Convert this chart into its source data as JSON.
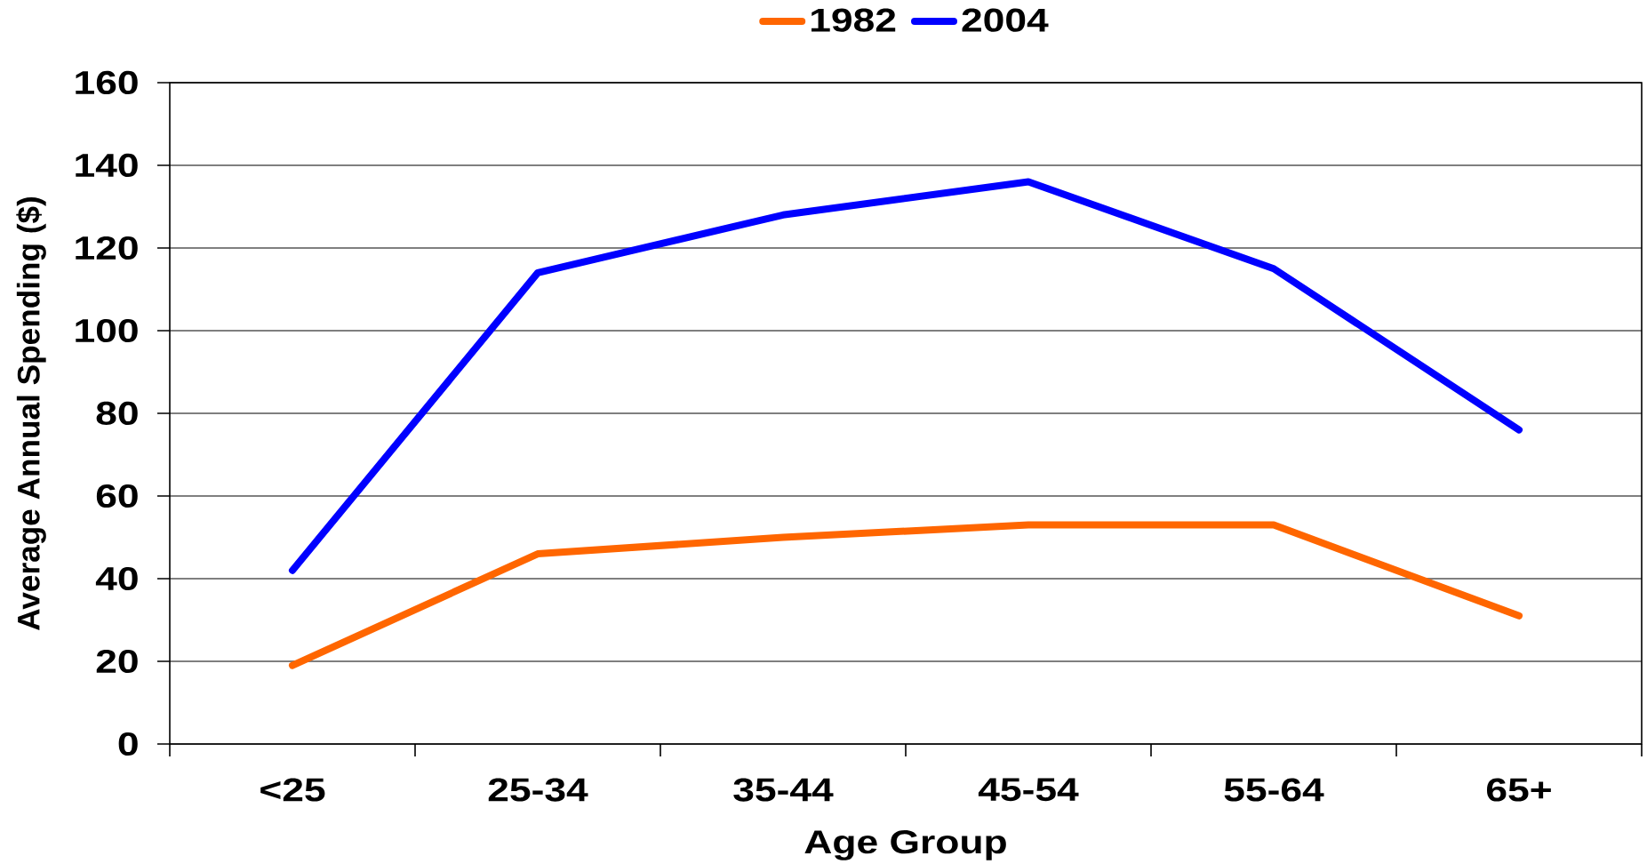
{
  "chart_data": {
    "type": "line",
    "xlabel": "Age Group",
    "ylabel": "Average Annual Spending ($)",
    "categories": [
      "<25",
      "25-34",
      "35-44",
      "45-54",
      "55-64",
      "65+"
    ],
    "series": [
      {
        "name": "1982",
        "color": "#ff6600",
        "values": [
          19,
          46,
          50,
          53,
          53,
          31
        ]
      },
      {
        "name": "2004",
        "color": "#0000ff",
        "values": [
          42,
          114,
          128,
          136,
          115,
          76
        ]
      }
    ],
    "ylim": [
      0,
      160
    ],
    "yticks": [
      0,
      20,
      40,
      60,
      80,
      100,
      120,
      140,
      160
    ],
    "grid": "y",
    "legend": "top",
    "line_style": "solid"
  }
}
